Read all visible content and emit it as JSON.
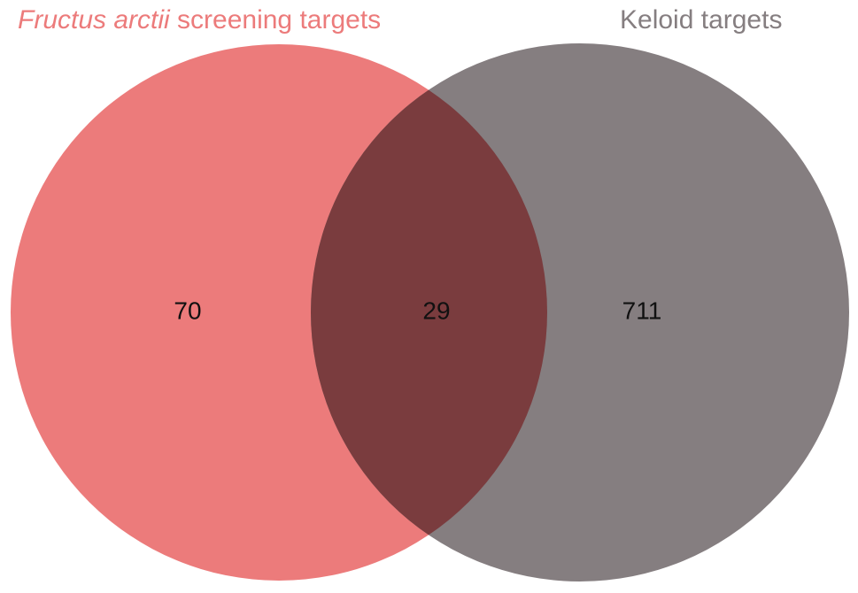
{
  "chart_data": {
    "type": "venn",
    "sets": [
      {
        "name_italic": "Fructus arctii",
        "name_rest": " screening targets",
        "only": 70,
        "color": "#EC7B7B"
      },
      {
        "name": "Keloid targets",
        "only": 711,
        "color": "#857E80"
      }
    ],
    "intersection": 29,
    "intersection_color": "#7A3C3E"
  }
}
